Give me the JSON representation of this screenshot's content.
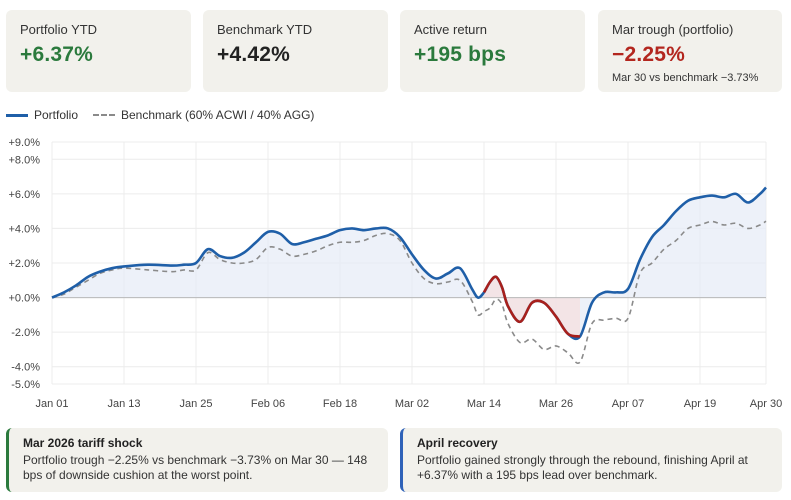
{
  "kpis": [
    {
      "label": "Portfolio YTD",
      "value": "+6.37%",
      "tone": "green"
    },
    {
      "label": "Benchmark YTD",
      "value": "+4.42%",
      "tone": "dark"
    },
    {
      "label": "Active return",
      "value": "+195 bps",
      "tone": "green"
    },
    {
      "label": "Mar trough (portfolio)",
      "value": "−2.25%",
      "tone": "red",
      "sub": "Mar 30 vs benchmark −3.73%"
    }
  ],
  "legend": {
    "portfolio": "Portfolio",
    "benchmark": "Benchmark (60% ACWI / 40% AGG)"
  },
  "colors": {
    "portfolio": "#1f5fa8",
    "benchmark": "#8a8a8a",
    "drawdown": "#a8201c",
    "fill": "#e7ecf7",
    "positive": "#2b7a3d",
    "negative": "#b3261e"
  },
  "chart_data": {
    "type": "line",
    "y_ticks": [
      "+9.0%",
      "+8.0%",
      "+6.0%",
      "+4.0%",
      "+2.0%",
      "+0.0%",
      "-2.0%",
      "-4.0%",
      "-5.0%"
    ],
    "y_tick_values": [
      9,
      8,
      6,
      4,
      2,
      0,
      -2,
      -4,
      -5
    ],
    "ylim": [
      -5,
      9
    ],
    "x_ticks": [
      "Jan 01",
      "Jan 13",
      "Jan 25",
      "Feb 06",
      "Feb 18",
      "Mar 02",
      "Mar 14",
      "Mar 26",
      "Apr 07",
      "Apr 19",
      "Apr 30"
    ],
    "x_tick_days": [
      0,
      12,
      24,
      36,
      48,
      60,
      72,
      84,
      96,
      108,
      119
    ],
    "grid": true,
    "drawdown_highlight": {
      "start_day": 72,
      "end_day": 88
    },
    "series": [
      {
        "name": "Portfolio",
        "days": [
          0,
          2,
          4,
          6,
          8,
          10,
          12,
          16,
          20,
          22,
          24,
          26,
          28,
          30,
          32,
          34,
          36,
          38,
          40,
          42,
          44,
          46,
          48,
          50,
          52,
          54,
          56,
          58,
          60,
          62,
          64,
          66,
          68,
          70,
          71,
          72,
          73,
          74,
          75,
          76,
          78,
          80,
          82,
          84,
          86,
          88,
          90,
          92,
          94,
          96,
          98,
          100,
          102,
          104,
          106,
          108,
          110,
          112,
          114,
          116,
          118,
          119
        ],
        "values": [
          0.0,
          0.3,
          0.7,
          1.2,
          1.5,
          1.7,
          1.8,
          1.9,
          1.85,
          1.9,
          2.0,
          2.8,
          2.4,
          2.3,
          2.6,
          3.2,
          3.8,
          3.7,
          3.1,
          3.2,
          3.4,
          3.6,
          3.9,
          4.0,
          3.9,
          4.0,
          4.0,
          3.5,
          2.5,
          1.6,
          1.1,
          1.4,
          1.7,
          0.5,
          0.0,
          0.3,
          0.9,
          1.2,
          0.6,
          -0.5,
          -1.4,
          -0.3,
          -0.3,
          -1.1,
          -2.1,
          -2.25,
          -0.3,
          0.3,
          0.3,
          0.5,
          2.2,
          3.5,
          4.2,
          5.0,
          5.6,
          5.8,
          5.9,
          5.8,
          6.0,
          5.5,
          6.0,
          6.37
        ]
      },
      {
        "name": "Benchmark (60% ACWI / 40% AGG)",
        "days": [
          0,
          2,
          4,
          6,
          8,
          10,
          12,
          16,
          20,
          22,
          24,
          26,
          28,
          30,
          32,
          34,
          36,
          38,
          40,
          42,
          44,
          46,
          48,
          50,
          52,
          54,
          56,
          58,
          60,
          62,
          64,
          66,
          68,
          70,
          71,
          72,
          73,
          74,
          75,
          76,
          78,
          80,
          82,
          84,
          86,
          88,
          90,
          92,
          94,
          96,
          98,
          100,
          102,
          104,
          106,
          108,
          110,
          112,
          114,
          116,
          118,
          119
        ],
        "values": [
          0.0,
          0.2,
          0.6,
          1.0,
          1.4,
          1.6,
          1.7,
          1.6,
          1.5,
          1.6,
          1.6,
          2.6,
          2.2,
          2.0,
          2.0,
          2.2,
          2.9,
          2.8,
          2.4,
          2.5,
          2.7,
          3.0,
          3.2,
          3.2,
          3.3,
          3.6,
          3.7,
          3.3,
          2.0,
          1.1,
          0.8,
          0.9,
          1.0,
          -0.2,
          -1.0,
          -0.8,
          -0.6,
          -0.1,
          -0.4,
          -1.5,
          -2.6,
          -2.4,
          -3.0,
          -2.8,
          -3.2,
          -3.73,
          -1.5,
          -1.3,
          -1.2,
          -1.2,
          1.4,
          2.0,
          2.8,
          3.3,
          4.0,
          4.2,
          4.4,
          4.2,
          4.3,
          4.0,
          4.2,
          4.42
        ]
      }
    ]
  },
  "notes": [
    {
      "title": "Mar 2026 tariff shock",
      "body": "Portfolio trough −2.25% vs benchmark −3.73% on Mar 30 — 148 bps of downside cushion at the worst point."
    },
    {
      "title": "April recovery",
      "body": "Portfolio gained strongly through the rebound, finishing April at +6.37% with a 195 bps lead over benchmark."
    }
  ]
}
